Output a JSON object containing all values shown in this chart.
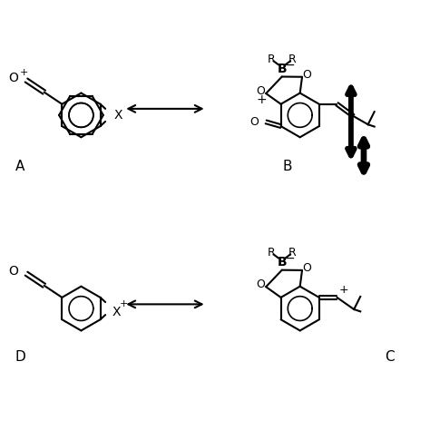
{
  "bg_color": "#ffffff",
  "text_color": "#000000",
  "line_color": "#000000",
  "label_A": "A",
  "label_B": "B",
  "label_C": "C",
  "label_D": "D",
  "figsize": [
    4.74,
    4.74
  ],
  "dpi": 100
}
